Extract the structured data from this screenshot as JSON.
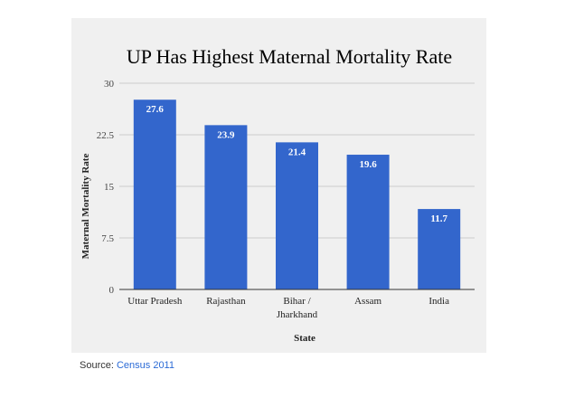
{
  "chart_data": {
    "type": "bar",
    "title": "UP Has Highest Maternal Mortality Rate",
    "xlabel": "State",
    "ylabel": "Maternal Mortality Rate",
    "categories": [
      [
        "Uttar Pradesh"
      ],
      [
        "Rajasthan"
      ],
      [
        "Bihar /",
        "Jharkhand"
      ],
      [
        "Assam"
      ],
      [
        "India"
      ]
    ],
    "values": [
      27.6,
      23.9,
      21.4,
      19.6,
      11.7
    ],
    "value_labels": [
      "27.6",
      "23.9",
      "21.4",
      "19.6",
      "11.7"
    ],
    "ylim": [
      0,
      30
    ],
    "yticks": [
      0,
      7.5,
      15,
      22.5,
      30
    ],
    "ytick_labels": [
      "0",
      "7.5",
      "15",
      "22.5",
      "30"
    ],
    "grid": true,
    "bar_color": "#3366cc"
  },
  "source": {
    "prefix": "Source: ",
    "link_text": "Census 2011"
  },
  "colors": {
    "panel_background": "#f0f0f0",
    "gridline": "#cccccc",
    "link": "#2a6ad6"
  }
}
